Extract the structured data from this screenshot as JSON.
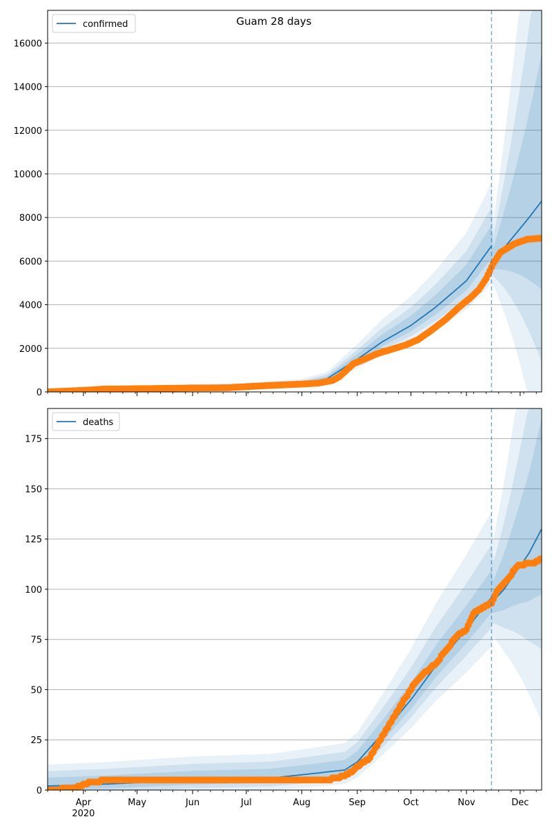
{
  "title": "Guam 28 days",
  "colors": {
    "model": "#1f77b4",
    "observed": "#ff7f0e",
    "band": "#1f77b4",
    "grid": "#b0b0b0",
    "forecast_line": "#1f77b4"
  },
  "x_axis": {
    "start": "2020-03-12",
    "end": "2020-12-13",
    "month_ticks": [
      {
        "date": "2020-04-01",
        "label": "Apr",
        "sublabel": "2020"
      },
      {
        "date": "2020-05-01",
        "label": "May",
        "sublabel": ""
      },
      {
        "date": "2020-06-01",
        "label": "Jun",
        "sublabel": ""
      },
      {
        "date": "2020-07-01",
        "label": "Jul",
        "sublabel": ""
      },
      {
        "date": "2020-08-01",
        "label": "Aug",
        "sublabel": ""
      },
      {
        "date": "2020-09-01",
        "label": "Sep",
        "sublabel": ""
      },
      {
        "date": "2020-10-01",
        "label": "Oct",
        "sublabel": ""
      },
      {
        "date": "2020-11-01",
        "label": "Nov",
        "sublabel": ""
      },
      {
        "date": "2020-12-01",
        "label": "Dec",
        "sublabel": ""
      }
    ],
    "forecast_start": "2020-11-15"
  },
  "chart_data": [
    {
      "type": "line",
      "legend": "confirmed",
      "legend_position": "top-left",
      "grid": "horizontal",
      "ylim": [
        0,
        17500
      ],
      "yticks": [
        0,
        2000,
        4000,
        6000,
        8000,
        10000,
        12000,
        14000,
        16000
      ],
      "observed": [
        [
          "2020-03-12",
          0
        ],
        [
          "2020-03-25",
          45
        ],
        [
          "2020-04-05",
          90
        ],
        [
          "2020-04-12",
          130
        ],
        [
          "2020-04-25",
          140
        ],
        [
          "2020-05-15",
          160
        ],
        [
          "2020-06-01",
          180
        ],
        [
          "2020-06-20",
          190
        ],
        [
          "2020-07-01",
          240
        ],
        [
          "2020-07-15",
          300
        ],
        [
          "2020-08-01",
          360
        ],
        [
          "2020-08-10",
          400
        ],
        [
          "2020-08-18",
          520
        ],
        [
          "2020-08-22",
          700
        ],
        [
          "2020-08-26",
          1000
        ],
        [
          "2020-08-30",
          1300
        ],
        [
          "2020-09-05",
          1500
        ],
        [
          "2020-09-12",
          1750
        ],
        [
          "2020-09-20",
          1950
        ],
        [
          "2020-09-28",
          2150
        ],
        [
          "2020-10-05",
          2400
        ],
        [
          "2020-10-12",
          2800
        ],
        [
          "2020-10-20",
          3300
        ],
        [
          "2020-10-28",
          3900
        ],
        [
          "2020-11-03",
          4300
        ],
        [
          "2020-11-08",
          4700
        ],
        [
          "2020-11-12",
          5200
        ],
        [
          "2020-11-16",
          5900
        ],
        [
          "2020-11-20",
          6400
        ],
        [
          "2020-11-28",
          6800
        ],
        [
          "2020-12-05",
          7000
        ],
        [
          "2020-12-13",
          7050
        ]
      ],
      "fitted": [
        [
          "2020-03-12",
          10
        ],
        [
          "2020-05-01",
          140
        ],
        [
          "2020-07-01",
          250
        ],
        [
          "2020-08-01",
          380
        ],
        [
          "2020-08-15",
          600
        ],
        [
          "2020-09-01",
          1500
        ],
        [
          "2020-09-15",
          2300
        ],
        [
          "2020-10-01",
          3050
        ],
        [
          "2020-10-15",
          3900
        ],
        [
          "2020-11-01",
          5100
        ],
        [
          "2020-11-15",
          6700
        ]
      ],
      "forecast": [
        [
          "2020-11-16",
          6000
        ],
        [
          "2020-11-22",
          6600
        ],
        [
          "2020-11-29",
          7300
        ],
        [
          "2020-12-06",
          8000
        ],
        [
          "2020-12-13",
          8750
        ]
      ]
    },
    {
      "type": "line",
      "legend": "deaths",
      "legend_position": "top-left",
      "grid": "horizontal",
      "ylim": [
        0,
        190
      ],
      "yticks": [
        0,
        25,
        50,
        75,
        100,
        125,
        150,
        175
      ],
      "observed": [
        [
          "2020-03-12",
          0
        ],
        [
          "2020-03-27",
          1
        ],
        [
          "2020-04-02",
          3
        ],
        [
          "2020-04-06",
          4
        ],
        [
          "2020-04-15",
          5
        ],
        [
          "2020-05-15",
          5
        ],
        [
          "2020-07-01",
          5
        ],
        [
          "2020-08-15",
          5
        ],
        [
          "2020-08-20",
          6
        ],
        [
          "2020-08-25",
          7
        ],
        [
          "2020-08-30",
          10
        ],
        [
          "2020-09-03",
          13
        ],
        [
          "2020-09-07",
          15
        ],
        [
          "2020-09-12",
          22
        ],
        [
          "2020-09-16",
          28
        ],
        [
          "2020-09-22",
          37
        ],
        [
          "2020-09-28",
          46
        ],
        [
          "2020-10-03",
          53
        ],
        [
          "2020-10-08",
          58
        ],
        [
          "2020-10-15",
          63
        ],
        [
          "2020-10-21",
          70
        ],
        [
          "2020-10-27",
          77
        ],
        [
          "2020-11-01",
          80
        ],
        [
          "2020-11-05",
          88
        ],
        [
          "2020-11-10",
          91
        ],
        [
          "2020-11-15",
          93
        ],
        [
          "2020-11-18",
          99
        ],
        [
          "2020-11-24",
          105
        ],
        [
          "2020-11-30",
          112
        ],
        [
          "2020-12-08",
          113
        ],
        [
          "2020-12-13",
          115
        ]
      ],
      "fitted": [
        [
          "2020-03-12",
          2
        ],
        [
          "2020-04-15",
          3
        ],
        [
          "2020-06-01",
          5
        ],
        [
          "2020-07-15",
          6
        ],
        [
          "2020-08-05",
          8
        ],
        [
          "2020-08-25",
          10
        ],
        [
          "2020-09-01",
          14
        ],
        [
          "2020-09-15",
          28
        ],
        [
          "2020-10-01",
          45
        ],
        [
          "2020-10-15",
          62
        ],
        [
          "2020-11-01",
          80
        ],
        [
          "2020-11-15",
          96
        ]
      ],
      "forecast": [
        [
          "2020-11-16",
          94
        ],
        [
          "2020-11-22",
          100
        ],
        [
          "2020-11-29",
          109
        ],
        [
          "2020-12-06",
          118
        ],
        [
          "2020-12-13",
          130
        ]
      ]
    }
  ]
}
